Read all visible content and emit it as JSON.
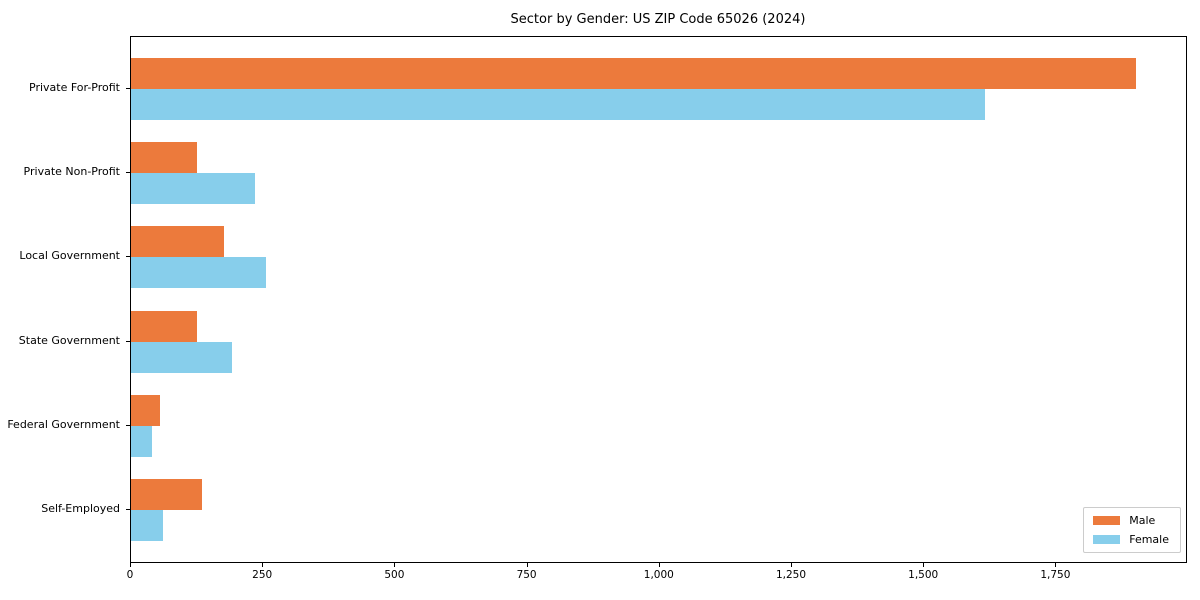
{
  "title": "Sector by Gender: US ZIP Code 65026 (2024)",
  "chart_data": {
    "type": "bar",
    "orientation": "horizontal",
    "title": "Sector by Gender: US ZIP Code 65026 (2024)",
    "categories": [
      "Private For-Profit",
      "Private Non-Profit",
      "Local Government",
      "State Government",
      "Federal Government",
      "Self-Employed"
    ],
    "series": [
      {
        "name": "Male",
        "color": "#ec7a3c",
        "values": [
          1900,
          125,
          175,
          125,
          55,
          135
        ]
      },
      {
        "name": "Female",
        "color": "#87ceeb",
        "values": [
          1615,
          235,
          255,
          190,
          40,
          60
        ]
      }
    ],
    "xlabel": "",
    "ylabel": "",
    "xlim": [
      0,
      1995
    ],
    "xticks": [
      0,
      250,
      500,
      750,
      1000,
      1250,
      1500,
      1750
    ],
    "xtick_labels": [
      "0",
      "250",
      "500",
      "750",
      "1,000",
      "1,250",
      "1,500",
      "1,750"
    ],
    "grid": false,
    "legend_position": "lower right"
  },
  "legend": {
    "items": [
      {
        "label": "Male",
        "color": "#ec7a3c"
      },
      {
        "label": "Female",
        "color": "#87ceeb"
      }
    ]
  }
}
